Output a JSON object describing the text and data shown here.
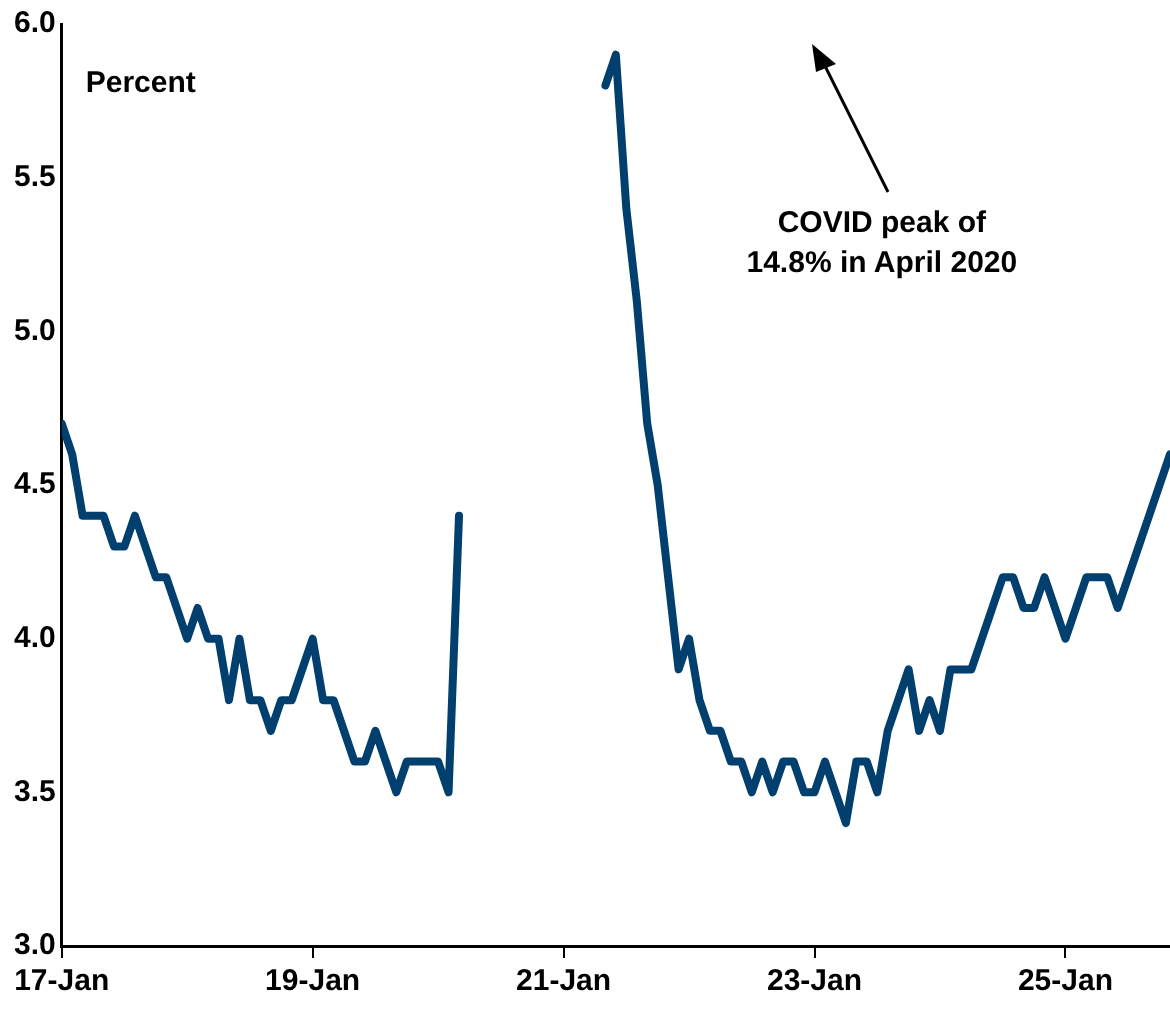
{
  "chart_data": {
    "type": "line",
    "ylabel": "Percent",
    "annotations": [
      "COVID peak of\n14.8% in April 2020"
    ],
    "x": [
      "2017-01",
      "2017-02",
      "2017-03",
      "2017-04",
      "2017-05",
      "2017-06",
      "2017-07",
      "2017-08",
      "2017-09",
      "2017-10",
      "2017-11",
      "2017-12",
      "2018-01",
      "2018-02",
      "2018-03",
      "2018-04",
      "2018-05",
      "2018-06",
      "2018-07",
      "2018-08",
      "2018-09",
      "2018-10",
      "2018-11",
      "2018-12",
      "2019-01",
      "2019-02",
      "2019-03",
      "2019-04",
      "2019-05",
      "2019-06",
      "2019-07",
      "2019-08",
      "2019-09",
      "2019-10",
      "2019-11",
      "2019-12",
      "2020-01",
      "2020-02",
      "2020-03",
      "2020-04",
      "2020-05",
      "2020-06",
      "2020-07",
      "2020-08",
      "2020-09",
      "2020-10",
      "2020-11",
      "2020-12",
      "2021-01",
      "2021-02",
      "2021-03",
      "2021-04",
      "2021-05",
      "2021-06",
      "2021-07",
      "2021-08",
      "2021-09",
      "2021-10",
      "2021-11",
      "2021-12",
      "2022-01",
      "2022-02",
      "2022-03",
      "2022-04",
      "2022-05",
      "2022-06",
      "2022-07",
      "2022-08",
      "2022-09",
      "2022-10",
      "2022-11",
      "2022-12",
      "2023-01",
      "2023-02",
      "2023-03",
      "2023-04",
      "2023-05",
      "2023-06",
      "2023-07",
      "2023-08",
      "2023-09",
      "2023-10",
      "2023-11",
      "2023-12",
      "2024-01",
      "2024-02",
      "2024-03",
      "2024-04",
      "2024-05",
      "2024-06",
      "2024-07",
      "2024-08",
      "2024-09",
      "2024-10",
      "2024-11",
      "2024-12",
      "2025-01",
      "2025-02",
      "2025-03",
      "2025-04",
      "2025-05",
      "2025-06",
      "2025-07",
      "2025-08",
      "2025-09",
      "2025-11"
    ],
    "series": [
      {
        "color": "#003f6e",
        "values": [
          4.7,
          4.6,
          4.4,
          4.4,
          4.4,
          4.3,
          4.3,
          4.4,
          4.3,
          4.2,
          4.2,
          4.1,
          4.0,
          4.1,
          4.0,
          4.0,
          3.8,
          4.0,
          3.8,
          3.8,
          3.7,
          3.8,
          3.8,
          3.9,
          4.0,
          3.8,
          3.8,
          3.7,
          3.6,
          3.6,
          3.7,
          3.6,
          3.5,
          3.6,
          3.6,
          3.6,
          3.6,
          3.5,
          4.4,
          null,
          null,
          null,
          null,
          null,
          null,
          null,
          null,
          null,
          null,
          null,
          null,
          null,
          5.8,
          5.9,
          5.4,
          5.1,
          4.7,
          4.5,
          4.2,
          3.9,
          4.0,
          3.8,
          3.7,
          3.7,
          3.6,
          3.6,
          3.5,
          3.6,
          3.5,
          3.6,
          3.6,
          3.5,
          3.5,
          3.6,
          3.5,
          3.4,
          3.6,
          3.6,
          3.5,
          3.7,
          3.8,
          3.9,
          3.7,
          3.8,
          3.7,
          3.9,
          3.9,
          3.9,
          4.0,
          4.1,
          4.2,
          4.2,
          4.1,
          4.1,
          4.2,
          4.1,
          4.0,
          4.1,
          4.2,
          4.2,
          4.2,
          4.1,
          4.2,
          4.3,
          4.4,
          4.6
        ]
      }
    ],
    "xlim": [
      "2017-01",
      "2025-11"
    ],
    "xticks": [
      {
        "value": "2017-01",
        "label": "17-Jan"
      },
      {
        "value": "2019-01",
        "label": "19-Jan"
      },
      {
        "value": "2021-01",
        "label": "21-Jan"
      },
      {
        "value": "2023-01",
        "label": "23-Jan"
      },
      {
        "value": "2025-01",
        "label": "25-Jan"
      }
    ],
    "ylim": [
      3,
      6
    ],
    "yticks": [
      {
        "value": 3,
        "label": "3.0"
      },
      {
        "value": 3.5,
        "label": "3.5"
      },
      {
        "value": 4,
        "label": "4.0"
      },
      {
        "value": 4.5,
        "label": "4.5"
      },
      {
        "value": 5,
        "label": "5.0"
      },
      {
        "value": 5.5,
        "label": "5.5"
      },
      {
        "value": 6,
        "label": "6.0"
      }
    ],
    "grid": false,
    "legend": false,
    "marker": "none",
    "line_style": "solid"
  }
}
